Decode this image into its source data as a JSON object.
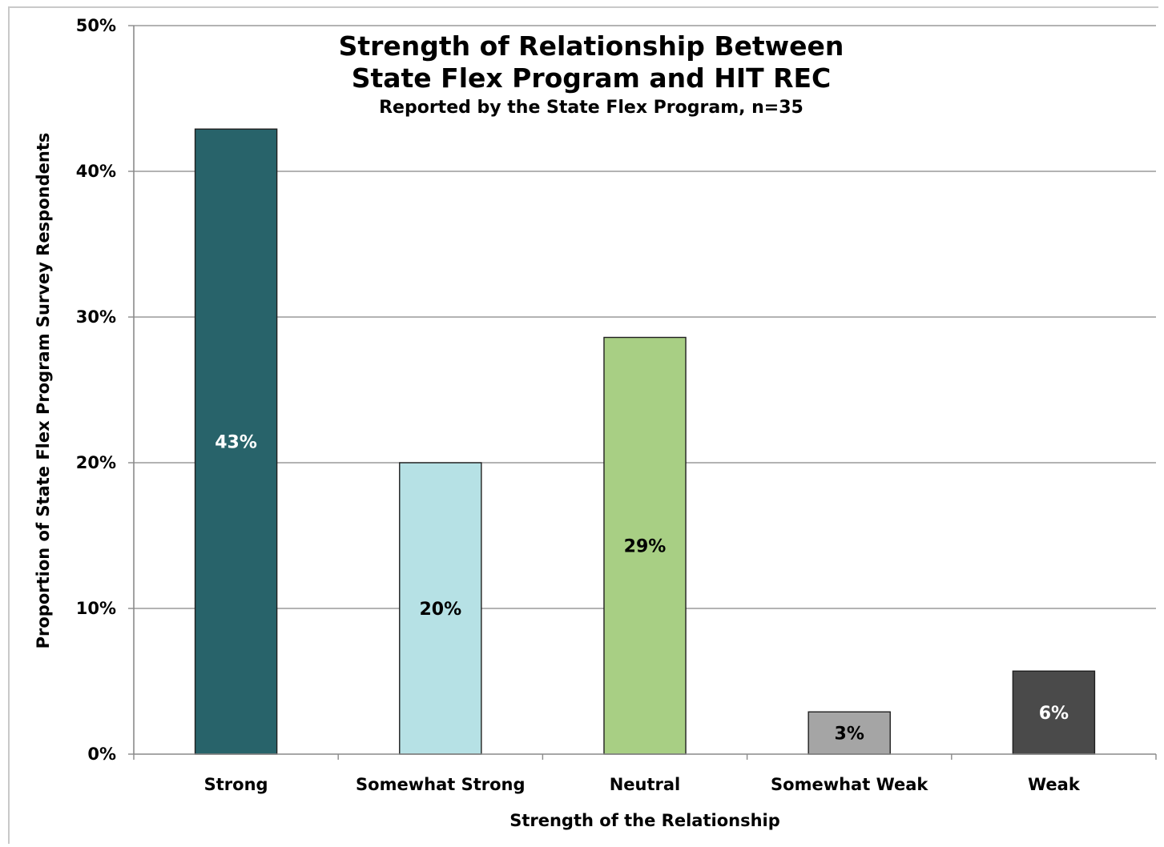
{
  "chart_data": {
    "type": "bar",
    "title": "Strength of Relationship Between",
    "title_line2": "State Flex Program and HIT REC",
    "subtitle": "Reported by the State Flex Program, n=35",
    "xlabel": "Strength of the Relationship",
    "ylabel": "Proportion of State Flex Program Survey Respondents",
    "categories": [
      "Strong",
      "Somewhat Strong",
      "Neutral",
      "Somewhat Weak",
      "Weak"
    ],
    "values": [
      42.9,
      20.0,
      28.6,
      2.9,
      5.7
    ],
    "data_labels": [
      "43%",
      "20%",
      "29%",
      "3%",
      "6%"
    ],
    "bar_colors": [
      "#28636a",
      "#b6e1e5",
      "#a8cf84",
      "#a5a5a5",
      "#4a4a4a"
    ],
    "label_colors": [
      "#ffffff",
      "#000000",
      "#000000",
      "#000000",
      "#ffffff"
    ],
    "ylim": [
      0,
      50
    ],
    "yticks": [
      0,
      10,
      20,
      30,
      40,
      50
    ],
    "ytick_labels": [
      "0%",
      "10%",
      "20%",
      "30%",
      "40%",
      "50%"
    ],
    "grid": true,
    "legend": "none"
  }
}
